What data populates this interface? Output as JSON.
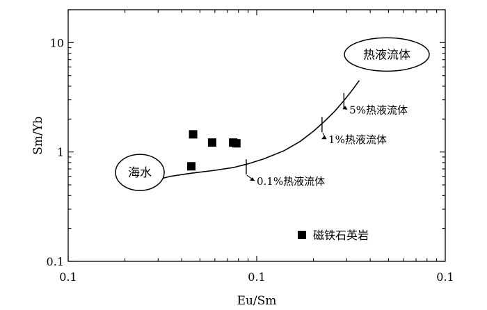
{
  "chart_data": {
    "type": "scatter",
    "xlabel": "Eu/Sm",
    "ylabel": "Sm/Yb",
    "xscale": "log",
    "yscale": "log",
    "xlim": [
      0.01,
      1
    ],
    "ylim": [
      0.1,
      20
    ],
    "x_tick_labels": [
      "0.1",
      "0.1",
      "0.1"
    ],
    "y_tick_labels": [
      "0.1",
      "1",
      "10"
    ],
    "grid": false,
    "legend": {
      "placement": "bottom-right",
      "label": "磁铁石英岩",
      "marker": "filled-square"
    },
    "series": [
      {
        "name": "磁铁石英岩",
        "marker": "square",
        "color": "#000000",
        "x": [
          0.045,
          0.046,
          0.058,
          0.075,
          0.078
        ],
        "y": [
          0.74,
          1.45,
          1.22,
          1.22,
          1.2
        ]
      }
    ],
    "mixing_curve": {
      "x": [
        0.031,
        0.035,
        0.045,
        0.06,
        0.075,
        0.09,
        0.11,
        0.14,
        0.17,
        0.2,
        0.23,
        0.26,
        0.29,
        0.32,
        0.35
      ],
      "y": [
        0.57,
        0.6,
        0.64,
        0.68,
        0.72,
        0.78,
        0.87,
        1.03,
        1.25,
        1.55,
        1.92,
        2.37,
        2.95,
        3.65,
        4.5
      ]
    },
    "end_members": [
      {
        "label": "海水",
        "x": 0.024,
        "y": 0.65
      },
      {
        "label": "热液流体",
        "x": 0.49,
        "y": 7.8
      }
    ],
    "annotations": [
      {
        "label": "0.1%热液流体",
        "x": 0.088,
        "y": 0.73,
        "text_x": 0.1,
        "text_y": 0.5
      },
      {
        "label": "1%热液流体",
        "x": 0.222,
        "y": 1.78,
        "text_x": 0.24,
        "text_y": 1.2
      },
      {
        "label": "5%热液流体",
        "x": 0.29,
        "y": 2.95,
        "text_x": 0.31,
        "text_y": 2.25
      }
    ]
  }
}
